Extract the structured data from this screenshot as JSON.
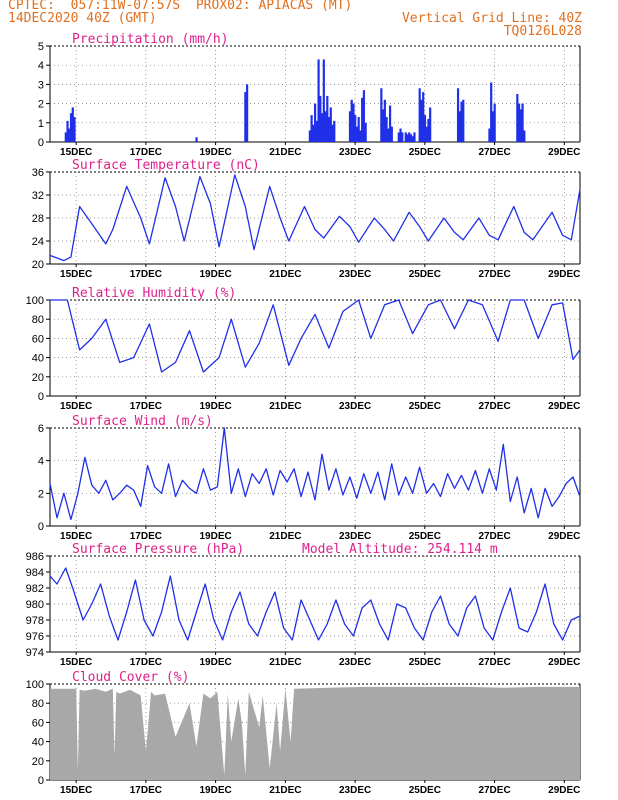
{
  "header": {
    "line1": "CPTEC:  057:11W-07:57S  PROX02: APIACAS (MT)",
    "line2": "14DEC2020 40Z (GMT)",
    "vgrid": "Vertical Grid Line: 40Z",
    "code": "TQ0126L028"
  },
  "x_axis": {
    "min": 0,
    "max": 15.2,
    "day_labels": [
      "15DEC",
      "17DEC",
      "19DEC",
      "21DEC",
      "23DEC",
      "25DEC",
      "27DEC",
      "29DEC"
    ],
    "day_positions": [
      0.75,
      2.75,
      4.75,
      6.75,
      8.75,
      10.75,
      12.75,
      14.75
    ]
  },
  "chart_data": [
    {
      "type": "bar",
      "title": "Precipitation (mm/h)",
      "ylim": [
        0,
        5
      ],
      "yticks": [
        0,
        1,
        2,
        3,
        4,
        5
      ],
      "color": "#2030e8",
      "x": [
        0.45,
        0.5,
        0.55,
        0.6,
        0.65,
        0.7,
        4.2,
        5.6,
        5.65,
        7.45,
        7.5,
        7.55,
        7.6,
        7.65,
        7.7,
        7.75,
        7.8,
        7.85,
        7.9,
        7.95,
        8.0,
        8.05,
        8.1,
        8.15,
        8.6,
        8.65,
        8.7,
        8.75,
        8.8,
        8.85,
        8.9,
        8.95,
        9.0,
        9.05,
        9.5,
        9.55,
        9.6,
        9.65,
        9.7,
        9.75,
        9.8,
        10.0,
        10.05,
        10.1,
        10.2,
        10.25,
        10.3,
        10.35,
        10.4,
        10.45,
        10.6,
        10.65,
        10.7,
        10.75,
        10.8,
        10.85,
        10.9,
        11.7,
        11.75,
        11.8,
        11.85,
        12.6,
        12.65,
        12.7,
        12.75,
        13.4,
        13.45,
        13.5,
        13.55,
        13.6
      ],
      "values": [
        0.5,
        1.1,
        0.7,
        1.5,
        1.8,
        1.3,
        0.25,
        2.6,
        3.0,
        0.6,
        1.4,
        0.9,
        2.0,
        1.1,
        4.3,
        2.4,
        1.5,
        4.3,
        1.6,
        2.4,
        1.3,
        1.8,
        0.9,
        1.1,
        1.6,
        2.2,
        2.0,
        1.4,
        0.8,
        1.3,
        0.6,
        2.3,
        2.7,
        1.0,
        2.8,
        1.7,
        2.2,
        1.3,
        0.7,
        1.9,
        0.8,
        0.5,
        0.7,
        0.5,
        0.5,
        0.4,
        0.5,
        0.4,
        0.3,
        0.5,
        2.8,
        2.2,
        2.6,
        1.4,
        0.8,
        1.2,
        1.8,
        2.8,
        1.6,
        2.1,
        2.2,
        0.7,
        3.1,
        1.6,
        2.0,
        2.5,
        2.0,
        1.7,
        2.0,
        0.6
      ]
    },
    {
      "type": "line",
      "title": "Surface Temperature (nC)",
      "ylim": [
        20,
        36
      ],
      "yticks": [
        20,
        24,
        28,
        32,
        36
      ],
      "color": "#2030e8",
      "x": [
        0,
        0.4,
        0.6,
        0.85,
        1.2,
        1.6,
        1.8,
        2.2,
        2.6,
        2.85,
        3.3,
        3.6,
        3.85,
        4.3,
        4.6,
        4.85,
        5.3,
        5.6,
        5.85,
        6.3,
        6.6,
        6.85,
        7.3,
        7.6,
        7.85,
        8.3,
        8.6,
        8.85,
        9.3,
        9.6,
        9.85,
        10.3,
        10.6,
        10.85,
        11.3,
        11.6,
        11.85,
        12.3,
        12.6,
        12.85,
        13.3,
        13.6,
        13.85,
        14.4,
        14.7,
        14.95,
        15.2
      ],
      "values": [
        21.5,
        20.6,
        21.2,
        30.0,
        27.0,
        23.5,
        26.0,
        33.5,
        28.0,
        23.5,
        35.0,
        30.0,
        24.0,
        35.2,
        30.5,
        23.0,
        35.5,
        30.0,
        22.5,
        33.5,
        28.0,
        24.0,
        30.0,
        26.0,
        24.5,
        28.3,
        26.5,
        23.8,
        28.0,
        26.0,
        24.0,
        29.0,
        26.5,
        24.0,
        28.0,
        25.5,
        24.2,
        28.0,
        25.0,
        24.2,
        30.0,
        25.5,
        24.2,
        29.0,
        25.0,
        24.2,
        33.0
      ]
    },
    {
      "type": "line",
      "title": "Relative Humidity (%)",
      "ylim": [
        0,
        100
      ],
      "yticks": [
        0,
        20,
        40,
        60,
        80,
        100
      ],
      "color": "#2030e8",
      "x": [
        0,
        0.5,
        0.85,
        1.2,
        1.6,
        2.0,
        2.4,
        2.85,
        3.2,
        3.6,
        4.0,
        4.4,
        4.85,
        5.2,
        5.6,
        6.0,
        6.4,
        6.85,
        7.2,
        7.6,
        8.0,
        8.4,
        8.85,
        9.2,
        9.6,
        10.0,
        10.4,
        10.85,
        11.2,
        11.6,
        12.0,
        12.4,
        12.85,
        13.2,
        13.6,
        14.0,
        14.4,
        14.7,
        15.0,
        15.2
      ],
      "values": [
        100,
        100,
        48,
        60,
        80,
        35,
        40,
        75,
        25,
        35,
        68,
        25,
        40,
        80,
        30,
        55,
        95,
        32,
        60,
        85,
        50,
        88,
        100,
        60,
        95,
        100,
        65,
        95,
        100,
        70,
        100,
        95,
        57,
        100,
        100,
        60,
        95,
        97,
        38,
        48
      ]
    },
    {
      "type": "line",
      "title": "Surface Wind (m/s)",
      "ylim": [
        0,
        6
      ],
      "yticks": [
        0,
        2,
        4,
        6
      ],
      "color": "#2030e8",
      "x": [
        0,
        0.2,
        0.4,
        0.6,
        0.8,
        1.0,
        1.2,
        1.4,
        1.6,
        1.8,
        2.0,
        2.2,
        2.4,
        2.6,
        2.8,
        3.0,
        3.2,
        3.4,
        3.6,
        3.8,
        4.0,
        4.2,
        4.4,
        4.6,
        4.8,
        5.0,
        5.2,
        5.4,
        5.6,
        5.8,
        6.0,
        6.2,
        6.4,
        6.6,
        6.8,
        7.0,
        7.2,
        7.4,
        7.6,
        7.8,
        8.0,
        8.2,
        8.4,
        8.6,
        8.8,
        9.0,
        9.2,
        9.4,
        9.6,
        9.8,
        10.0,
        10.2,
        10.4,
        10.6,
        10.8,
        11.0,
        11.2,
        11.4,
        11.6,
        11.8,
        12.0,
        12.2,
        12.4,
        12.6,
        12.8,
        13.0,
        13.2,
        13.4,
        13.6,
        13.8,
        14.0,
        14.2,
        14.4,
        14.6,
        14.8,
        15.0,
        15.2
      ],
      "values": [
        2.6,
        0.5,
        2.0,
        0.4,
        2.0,
        4.2,
        2.5,
        2.0,
        2.8,
        1.6,
        2.0,
        2.5,
        2.2,
        1.2,
        3.7,
        2.4,
        2.0,
        3.8,
        1.8,
        2.8,
        2.3,
        2.0,
        3.5,
        2.2,
        2.4,
        6.0,
        2.0,
        3.5,
        1.8,
        3.2,
        2.6,
        3.5,
        1.9,
        3.4,
        2.7,
        3.5,
        1.8,
        3.3,
        1.6,
        4.4,
        2.2,
        3.5,
        1.9,
        3.0,
        1.7,
        3.2,
        2.0,
        3.3,
        1.6,
        3.8,
        1.9,
        3.0,
        2.0,
        3.6,
        2.0,
        2.6,
        1.8,
        3.2,
        2.3,
        3.1,
        2.2,
        3.4,
        2.0,
        3.5,
        2.2,
        5.0,
        1.5,
        3.0,
        0.8,
        2.3,
        0.5,
        2.3,
        1.2,
        1.8,
        2.6,
        3.0,
        1.8
      ]
    },
    {
      "type": "line",
      "title": "Surface Pressure (hPa)",
      "annotation": "Model Altitude: 254.114 m",
      "ylim": [
        974,
        986
      ],
      "yticks": [
        974,
        976,
        978,
        980,
        982,
        984,
        986
      ],
      "color": "#2030e8",
      "x": [
        0,
        0.2,
        0.45,
        0.65,
        0.95,
        1.2,
        1.45,
        1.7,
        1.95,
        2.2,
        2.45,
        2.7,
        2.95,
        3.2,
        3.45,
        3.7,
        3.95,
        4.2,
        4.45,
        4.7,
        4.95,
        5.2,
        5.45,
        5.7,
        5.95,
        6.2,
        6.45,
        6.7,
        6.95,
        7.2,
        7.45,
        7.7,
        7.95,
        8.2,
        8.45,
        8.7,
        8.95,
        9.2,
        9.45,
        9.7,
        9.95,
        10.2,
        10.45,
        10.7,
        10.95,
        11.2,
        11.45,
        11.7,
        11.95,
        12.2,
        12.45,
        12.7,
        12.95,
        13.2,
        13.45,
        13.7,
        13.95,
        14.2,
        14.45,
        14.7,
        14.95,
        15.2
      ],
      "values": [
        983.5,
        982.5,
        984.5,
        982.0,
        978.0,
        980.0,
        982.5,
        978.5,
        975.5,
        979.0,
        983.0,
        978.0,
        976.0,
        979.0,
        983.5,
        978.0,
        975.5,
        979.0,
        982.5,
        978.0,
        975.5,
        979.0,
        981.5,
        977.5,
        976.0,
        979.0,
        981.5,
        977.0,
        975.5,
        980.5,
        978.0,
        975.5,
        977.5,
        980.5,
        977.5,
        976.0,
        979.5,
        980.5,
        977.5,
        975.5,
        980.0,
        979.5,
        977.0,
        975.5,
        979.0,
        981.0,
        977.5,
        976.0,
        979.5,
        981.0,
        977.0,
        975.5,
        979.0,
        982.0,
        977.0,
        976.5,
        979.0,
        982.5,
        977.5,
        975.5,
        978.0,
        978.5
      ]
    },
    {
      "type": "area",
      "title": "Cloud Cover (%)",
      "ylim": [
        0,
        100
      ],
      "yticks": [
        0,
        20,
        40,
        60,
        80,
        100
      ],
      "color": "#a8a8a8",
      "x": [
        0,
        0.3,
        0.75,
        0.8,
        0.85,
        1.0,
        1.3,
        1.6,
        1.8,
        1.85,
        1.9,
        2.0,
        2.3,
        2.6,
        2.75,
        2.9,
        3.0,
        3.3,
        3.6,
        4.0,
        4.2,
        4.4,
        4.6,
        4.8,
        5.0,
        5.1,
        5.2,
        5.4,
        5.5,
        5.6,
        5.7,
        6.0,
        6.1,
        6.3,
        6.5,
        6.6,
        6.75,
        6.9,
        7.0,
        8.0,
        9.0,
        10.0,
        11.0,
        12.0,
        13.0,
        14.0,
        15.2
      ],
      "values": [
        95,
        95,
        95,
        10,
        94,
        93,
        95,
        92,
        95,
        25,
        92,
        90,
        94,
        88,
        30,
        92,
        88,
        90,
        45,
        80,
        35,
        90,
        85,
        92,
        5,
        90,
        40,
        85,
        60,
        5,
        92,
        55,
        88,
        12,
        80,
        30,
        95,
        40,
        95,
        96,
        97,
        97,
        97,
        97,
        96,
        97,
        97
      ]
    }
  ]
}
